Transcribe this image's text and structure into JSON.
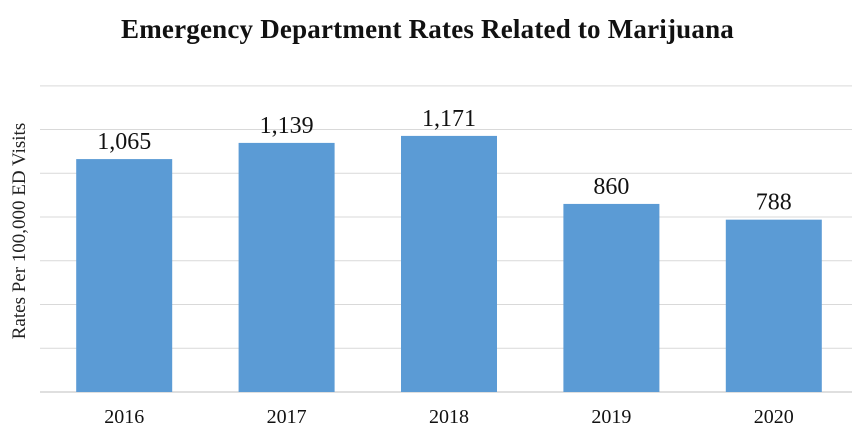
{
  "chart_data": {
    "type": "bar",
    "title": "Emergency Department Rates Related to Marijuana",
    "xlabel": "",
    "ylabel": "Rates Per 100,000 ED Visits",
    "categories": [
      "2016",
      "2017",
      "2018",
      "2019",
      "2020"
    ],
    "values": [
      1065,
      1139,
      1171,
      860,
      788
    ],
    "value_labels": [
      "1,065",
      "1,139",
      "1,171",
      "860",
      "788"
    ],
    "ylim": [
      0,
      1400
    ],
    "grid": true,
    "legend": "none",
    "colors": {
      "bar": "#5B9BD5",
      "grid": "#d9d9d9",
      "axis": "#bfbfbf"
    }
  }
}
